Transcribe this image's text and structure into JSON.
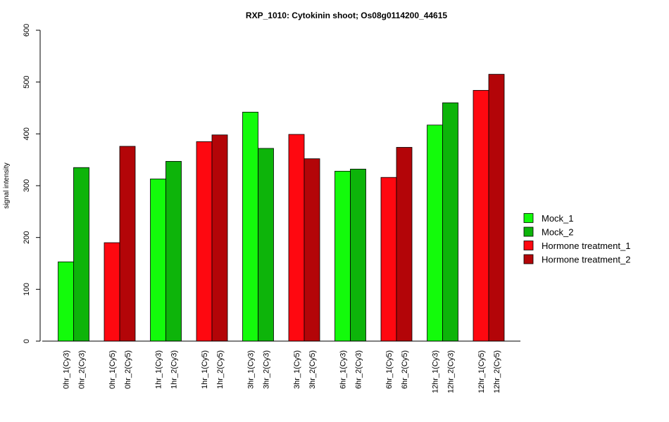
{
  "chart_data": {
    "type": "bar",
    "title": "RXP_1010: Cytokinin shoot; Os08g0114200_44615",
    "ylabel": "signal intensity",
    "xlabel": "",
    "ylim": [
      0,
      600
    ],
    "yticks": [
      0,
      100,
      200,
      300,
      400,
      500,
      600
    ],
    "categories": [
      "0hr_1(Cy3)",
      "0hr_2(Cy3)",
      "0hr_1(Cy5)",
      "0hr_2(Cy5)",
      "1hr_1(Cy3)",
      "1hr_2(Cy3)",
      "1hr_1(Cy5)",
      "1hr_2(Cy5)",
      "3hr_1(Cy3)",
      "3hr_2(Cy3)",
      "3hr_1(Cy5)",
      "3hr_2(Cy5)",
      "6hr_1(Cy3)",
      "6hr_2(Cy3)",
      "6hr_1(Cy5)",
      "6hr_2(Cy5)",
      "12hr_1(Cy3)",
      "12hr_2(Cy3)",
      "12hr_1(Cy5)",
      "12hr_2(Cy5)"
    ],
    "values": [
      153,
      335,
      190,
      376,
      313,
      347,
      385,
      398,
      442,
      372,
      399,
      352,
      328,
      332,
      316,
      374,
      417,
      460,
      484,
      515
    ],
    "bar_series": [
      0,
      1,
      2,
      3,
      0,
      1,
      2,
      3,
      0,
      1,
      2,
      3,
      0,
      1,
      2,
      3,
      0,
      1,
      2,
      3
    ],
    "legend": [
      {
        "name": "Mock_1",
        "color": "#13fb0b"
      },
      {
        "name": "Mock_2",
        "color": "#0db40a"
      },
      {
        "name": "Hormone treatment_1",
        "color": "#fe0810"
      },
      {
        "name": "Hormone treatment_2",
        "color": "#b30508"
      }
    ],
    "legend_position": "right",
    "grid": false
  }
}
